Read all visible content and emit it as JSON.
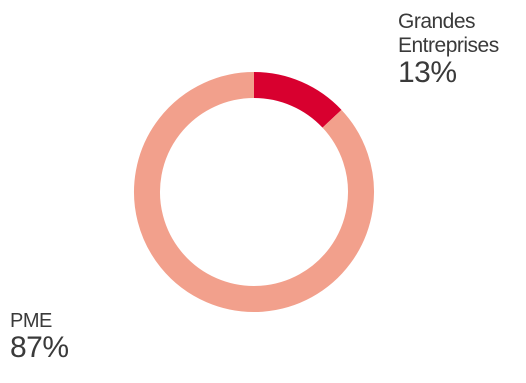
{
  "chart_data": {
    "type": "pie",
    "style": "donut",
    "title": "",
    "slices": [
      {
        "label": "Grandes Entreprises",
        "label_lines": [
          "Grandes",
          "Entreprises"
        ],
        "value": 13,
        "display": "13%",
        "color": "#d8002f"
      },
      {
        "label": "PME",
        "label_lines": [
          "PME"
        ],
        "value": 87,
        "display": "87%",
        "color": "#f2a08c"
      }
    ],
    "start_angle_deg": 0,
    "direction": "clockwise-from-top"
  }
}
